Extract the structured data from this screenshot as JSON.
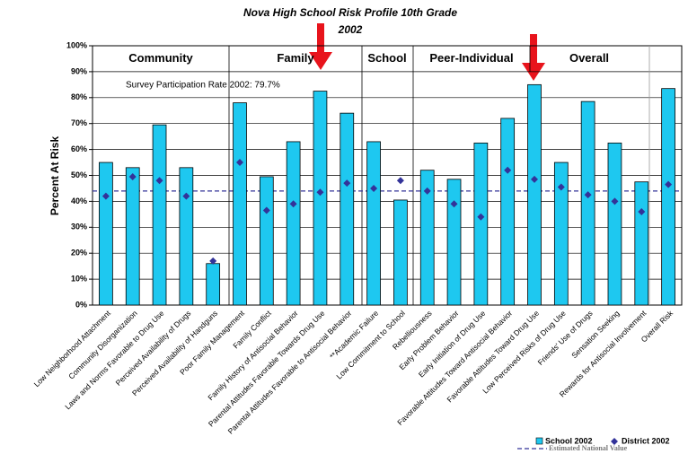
{
  "chart_data": {
    "type": "bar",
    "title": [
      "Nova High School Risk Profile 10th Grade",
      "2002"
    ],
    "ylabel": "Percent At Risk",
    "annotation": "Survey Participation Rate 2002: 79.7%",
    "groups": [
      "Community",
      "Family",
      "School",
      "Peer-Individual",
      "Overall"
    ],
    "categories": [
      "Low Neighborhood Attachment",
      "Community Disorganization",
      "Laws and Norms Favorable to Drug Use",
      "Perceived Availability of Drugs",
      "Perceived Availability of Handguns",
      "Poor Family Management",
      "Family Conflict",
      "Family History of Antisocial Behavior",
      "Parental Attitudes Favorable Towards Drug Use",
      "Parental Attitudes Favorable to Antisocial Behavior",
      "**Academic Failure",
      "Low Commitment to School",
      "Rebelliousness",
      "Early Problem Behavior",
      "Early Initiation of Drug Use",
      "Favorable Attitudes Toward Antisocial Behavior",
      "Favorable Attitudes Toward Drug Use",
      "Low Perceived Risks of Drug Use",
      "Friends' Use of Drugs",
      "Sensation Seeking",
      "Rewards for Antisocial Involvement",
      "Overall Risk"
    ],
    "series": [
      {
        "name": "School 2002",
        "color": "#1ec8f0",
        "values": [
          55,
          53,
          69.5,
          53,
          16,
          78,
          49.5,
          63,
          82.5,
          74,
          63,
          40.5,
          52,
          48.5,
          62.5,
          72,
          85,
          55,
          78.5,
          62.5,
          47.5,
          83.5
        ]
      },
      {
        "name": "District 2002",
        "color": "#333399",
        "values": [
          42,
          49.5,
          48,
          42,
          17,
          55,
          36.5,
          39,
          43.5,
          47,
          45,
          48,
          44,
          39,
          34,
          52,
          48.5,
          45.5,
          42.5,
          40,
          36,
          46.5
        ]
      }
    ],
    "national": {
      "name": "Estimated National Value",
      "value": 44,
      "color": "#333399"
    },
    "ylim": [
      0,
      100
    ],
    "yticks": [
      {
        "value": 0,
        "label": "0%"
      },
      {
        "value": 10,
        "label": "10%"
      },
      {
        "value": 20,
        "label": "20%"
      },
      {
        "value": 30,
        "label": "30%"
      },
      {
        "value": 40,
        "label": "40%"
      },
      {
        "value": 50,
        "label": "50%"
      },
      {
        "value": 60,
        "label": "60%"
      },
      {
        "value": 70,
        "label": "70%"
      },
      {
        "value": 80,
        "label": "80%"
      },
      {
        "value": 90,
        "label": "90%"
      },
      {
        "value": 100,
        "label": "100%"
      }
    ],
    "grid": true
  }
}
